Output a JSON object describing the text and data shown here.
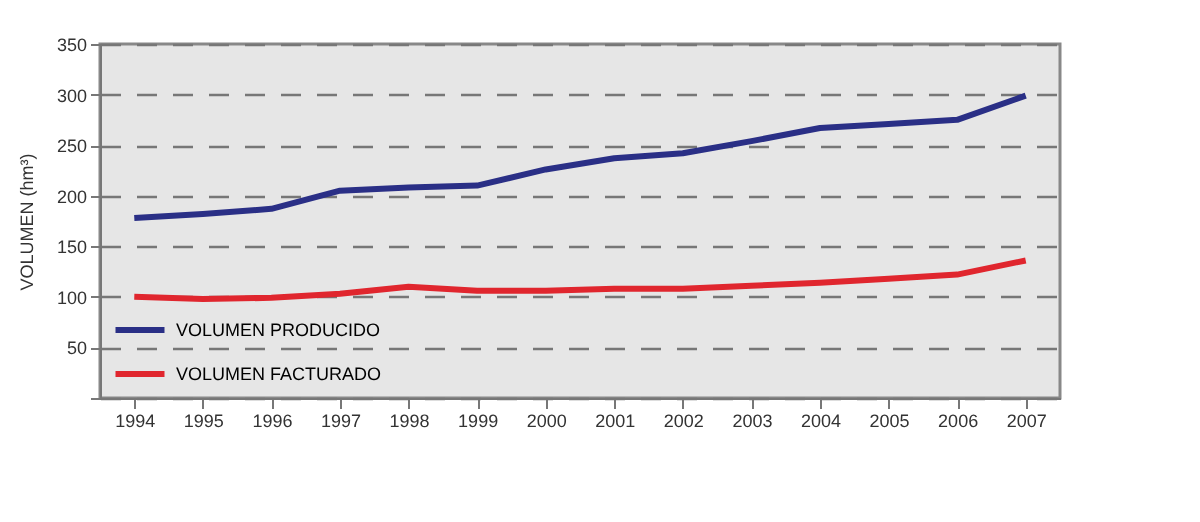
{
  "chart_data": {
    "type": "line",
    "ylabel": "VOLUMEN (hm³)",
    "categories": [
      "1994",
      "1995",
      "1996",
      "1997",
      "1998",
      "1999",
      "2000",
      "2001",
      "2002",
      "2003",
      "2004",
      "2005",
      "2006",
      "2007"
    ],
    "series": [
      {
        "name": "VOLUMEN PRODUCIDO",
        "color": "#2a2f86",
        "values": [
          178,
          182,
          187,
          205,
          208,
          210,
          226,
          237,
          242,
          254,
          267,
          271,
          275,
          299
        ]
      },
      {
        "name": "VOLUMEN FACTURADO",
        "color": "#e0262e",
        "values": [
          100,
          98,
          99,
          103,
          110,
          106,
          106,
          108,
          108,
          111,
          114,
          118,
          122,
          136
        ]
      }
    ],
    "ylim": [
      0,
      350
    ],
    "yticks": [
      {
        "value": 0,
        "label": null
      },
      50,
      100,
      150,
      200,
      250,
      300,
      350
    ],
    "grid": "y",
    "legend": "bottom left",
    "line_style": "solid",
    "marker": "none"
  }
}
